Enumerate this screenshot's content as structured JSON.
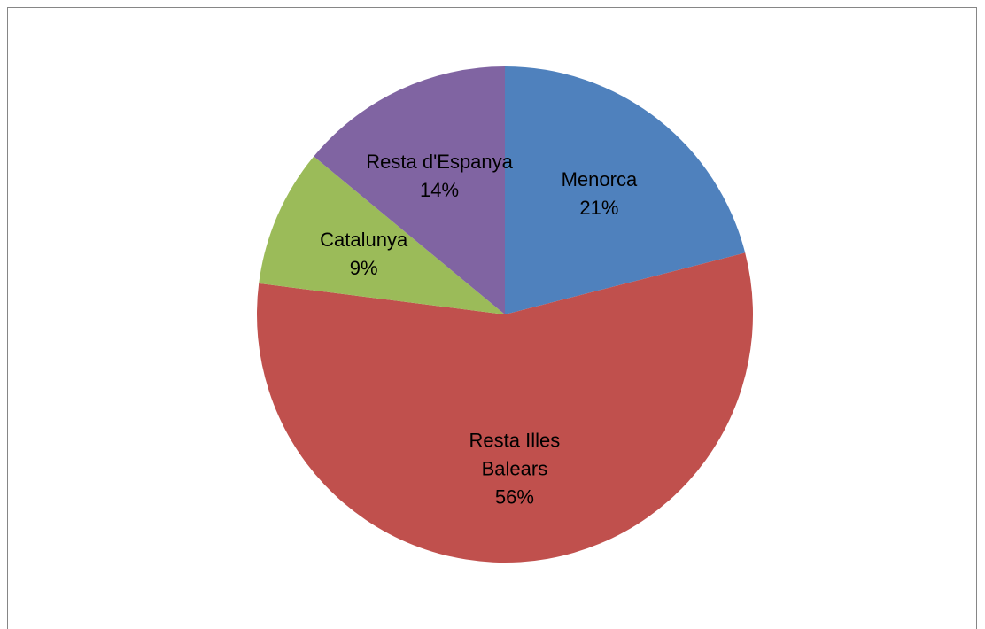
{
  "chart_data": {
    "type": "pie",
    "title": "",
    "start_angle_deg": 0,
    "direction": "clockwise",
    "slices": [
      {
        "name": "Menorca",
        "label_lines": [
          "Menorca"
        ],
        "percent_label": "21%",
        "value": 21,
        "color": "#4f81bd"
      },
      {
        "name": "Resta Illes Balears",
        "label_lines": [
          "Resta Illes",
          "Balears"
        ],
        "percent_label": "56%",
        "value": 56,
        "color": "#c0504d"
      },
      {
        "name": "Catalunya",
        "label_lines": [
          "Catalunya"
        ],
        "percent_label": "9%",
        "value": 9,
        "color": "#9bbb59"
      },
      {
        "name": "Resta d'Espanya",
        "label_lines": [
          "Resta d'Espanya"
        ],
        "percent_label": "14%",
        "value": 14,
        "color": "#8064a2"
      }
    ],
    "legend": "none",
    "data_labels": "inside"
  }
}
